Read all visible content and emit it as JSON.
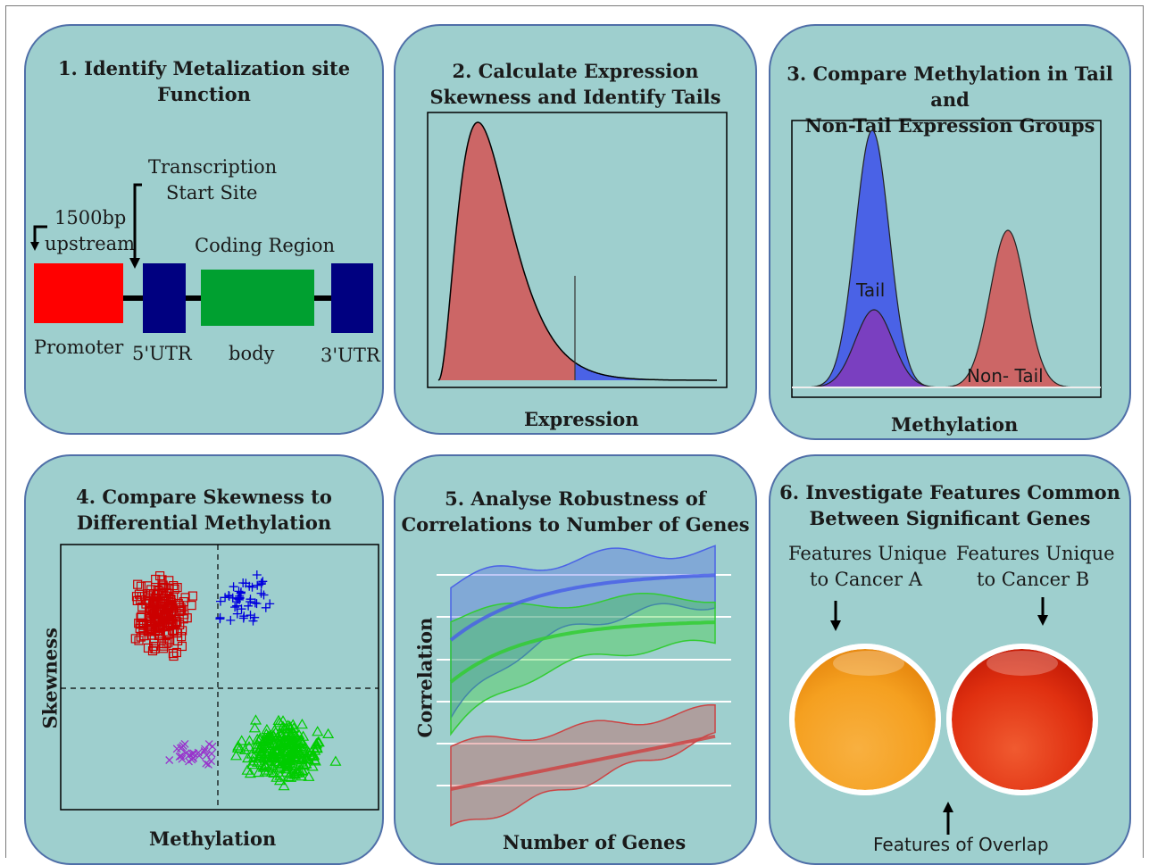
{
  "panels": {
    "p1": {
      "title_line1": "1. Identify Metalization site",
      "title_line2": "Function",
      "tss_line1": "Transcription",
      "tss_line2": "Start Site",
      "upstream_line1": "1500bp",
      "upstream_line2": "upstream",
      "coding_region": "Coding Region",
      "promoter": "Promoter",
      "utr5": "5'UTR",
      "body": "body",
      "utr3": "3'UTR",
      "colors": {
        "promoter": "#ff0000",
        "utr": "#000080",
        "body": "#00a030"
      }
    },
    "p2": {
      "title_line1": "2. Calculate Expression",
      "title_line2": "Skewness and Identify Tails",
      "xlabel": "Expression",
      "colors": {
        "main": "#cc6666",
        "tail": "#4a62e6"
      }
    },
    "p3": {
      "title_line1": "3. Compare Methylation in Tail and",
      "title_line2": "Non-Tail Expression Groups",
      "tail_label": "Tail",
      "nontail_label": "Non- Tail",
      "xlabel": "Methylation",
      "colors": {
        "tail": "#4a62e6",
        "overlap": "#7a3fc0",
        "nontail": "#cc6666"
      }
    },
    "p4": {
      "title_line1": "4. Compare Skewness to",
      "title_line2": "Differential Methylation",
      "xlabel": "Methylation",
      "ylabel": "Skewness",
      "colors": {
        "squares": "#cc0000",
        "plus": "#0000dd",
        "cross": "#9933cc",
        "triangles": "#00cc00"
      }
    },
    "p5": {
      "title_line1": "5. Analyse Robustness of",
      "title_line2": "Correlations to Number of Genes",
      "xlabel": "Number of Genes",
      "ylabel": "Correlation",
      "colors": {
        "blue": "#4a62e6",
        "green": "#33cc33",
        "red": "#cc4444"
      }
    },
    "p6": {
      "title_line1": "6. Investigate Features Common",
      "title_line2": "Between Significant Genes",
      "cancer_a_line1": "Features Unique",
      "cancer_a_line2": "to Cancer A",
      "cancer_b_line1": "Features Unique",
      "cancer_b_line2": "to Cancer B",
      "overlap": "Features of Overlap",
      "colors": {
        "a": "#f5a020",
        "b": "#e03010",
        "overlap": "#f7e070"
      }
    }
  }
}
